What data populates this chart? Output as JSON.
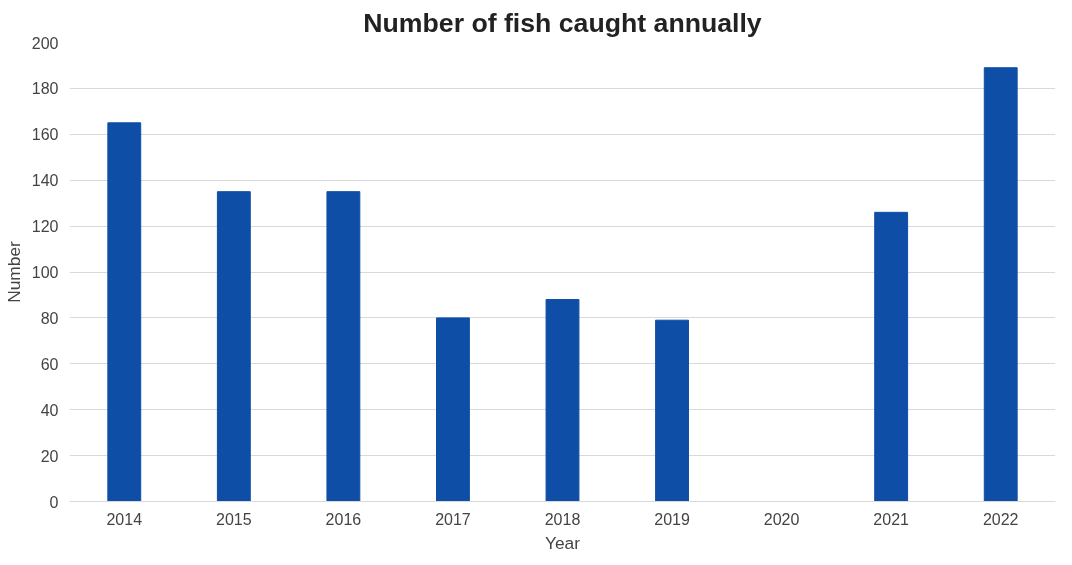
{
  "chart_data": {
    "type": "bar",
    "title": "Number of fish caught annually",
    "xlabel": "Year",
    "ylabel": "Number",
    "categories": [
      "2014",
      "2015",
      "2016",
      "2017",
      "2018",
      "2019",
      "2020",
      "2021",
      "2022"
    ],
    "values": [
      165,
      135,
      135,
      80,
      88,
      79,
      0,
      126,
      189
    ],
    "color": "#0e4ea6",
    "ylim": [
      0,
      200
    ],
    "yticks": [
      0,
      20,
      40,
      60,
      80,
      100,
      120,
      140,
      160,
      180,
      200
    ],
    "grid": "y"
  }
}
